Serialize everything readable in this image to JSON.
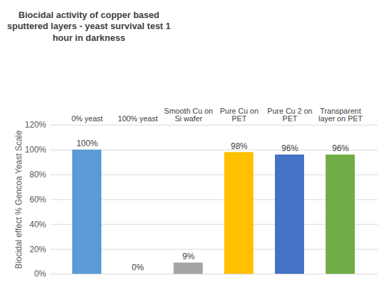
{
  "chart_data": {
    "type": "bar",
    "title": "Biocidal activity of copper based sputtered layers - yeast survival test 1 hour in darkness",
    "y_label": "Biocidal effect % Gencoa Yeast Scale",
    "categories": [
      "0% yeast",
      "100% yeast",
      "Smooth Cu on Si wafer",
      "Pure Cu on PET",
      "Pure Cu 2 on PET",
      "Transparent layer on PET"
    ],
    "values": [
      100,
      0,
      9,
      98,
      96,
      96
    ],
    "value_labels": [
      "100%",
      "0%",
      "9%",
      "98%",
      "96%",
      "96%"
    ],
    "colors": [
      "#5b9bd5",
      "#ed7d31",
      "#a5a5a5",
      "#ffc000",
      "#4472c4",
      "#70ad47"
    ],
    "ylim": [
      0,
      120
    ],
    "yticks": [
      {
        "value": 0,
        "label": "0%"
      },
      {
        "value": 20,
        "label": "20%"
      },
      {
        "value": 40,
        "label": "40%"
      },
      {
        "value": 60,
        "label": "60%"
      },
      {
        "value": 80,
        "label": "80%"
      },
      {
        "value": 100,
        "label": "100%"
      },
      {
        "value": 120,
        "label": "120%"
      }
    ],
    "grid": true,
    "data_labels": true
  }
}
